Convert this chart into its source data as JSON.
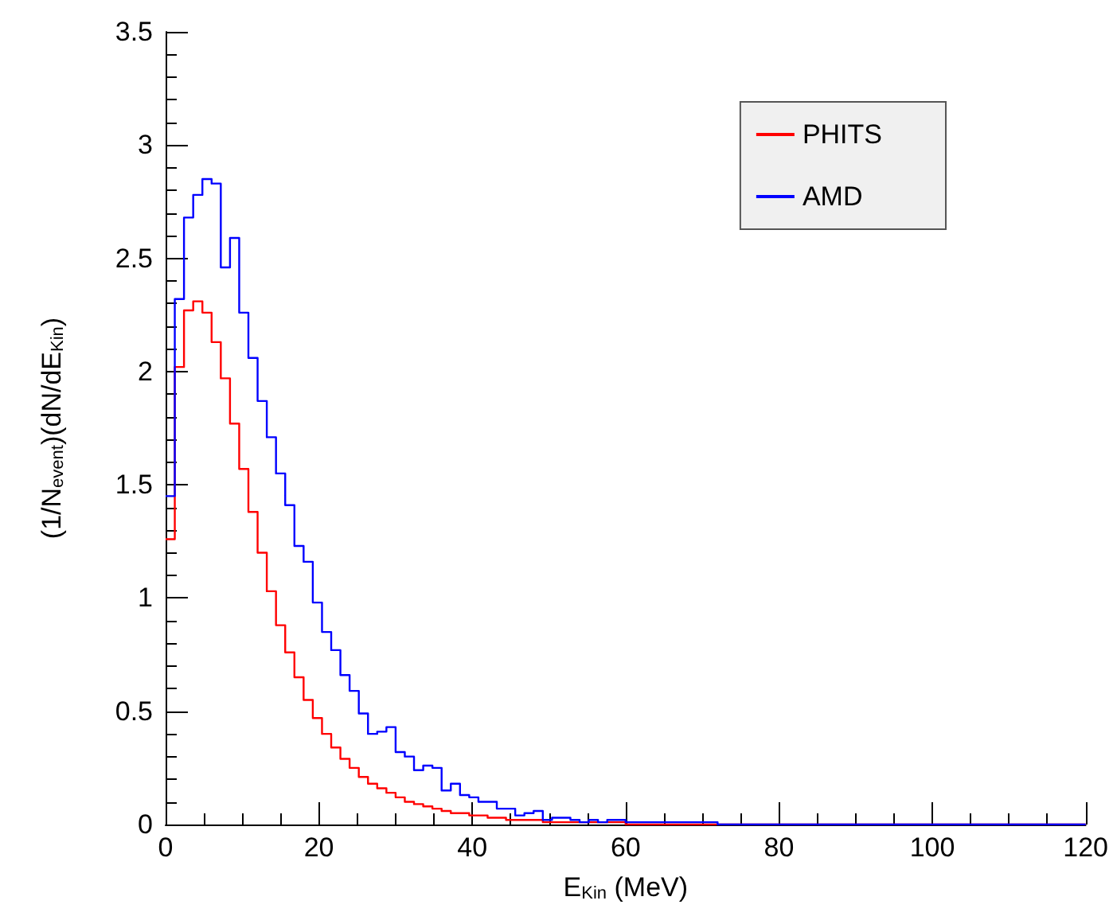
{
  "chart_data": {
    "type": "histogram",
    "xlabel": "E$_{Kin}$ (MeV)",
    "ylabel": "(1/N$_{event}$)(dN/dE$_{Kin}$)",
    "bins": [
      0,
      1.2,
      2.4,
      3.6,
      4.8,
      6,
      7.2,
      8.4,
      9.6,
      10.8,
      12,
      13.2,
      14.4,
      15.6,
      16.8,
      18,
      19.2,
      20.4,
      21.6,
      22.8,
      24,
      25.2,
      26.4,
      27.6,
      28.8,
      30,
      31.2,
      32.4,
      33.6,
      34.8,
      36,
      37.2,
      38.4,
      39.6,
      40.8,
      42,
      43.2,
      44.4,
      45.6,
      46.8,
      48,
      49.2,
      50.4,
      51.6,
      52.8,
      54,
      55.2,
      56.4,
      57.6,
      58.8,
      60,
      61.2,
      62.4,
      63.6,
      64.8,
      66,
      67.2,
      68.4,
      69.6,
      70.8,
      72,
      73.2,
      74.4,
      75.6,
      76.8,
      78,
      79.2,
      80.4,
      81.6,
      82.8,
      84,
      85.2,
      86.4,
      87.6,
      88.8,
      90,
      91.2,
      92.4,
      93.6,
      94.8,
      96,
      97.2,
      98.4,
      99.6,
      100.8,
      102,
      103.2,
      104.4,
      105.6,
      106.8,
      108,
      109.2,
      110.4,
      111.6,
      112.8,
      114,
      115.2,
      116.4,
      117.6,
      118.8,
      120
    ],
    "series": [
      {
        "name": "PHITS",
        "color": "#ff0000",
        "values": [
          1.26,
          2.02,
          2.27,
          2.31,
          2.26,
          2.13,
          1.97,
          1.77,
          1.57,
          1.38,
          1.2,
          1.03,
          0.88,
          0.76,
          0.65,
          0.55,
          0.47,
          0.4,
          0.34,
          0.29,
          0.25,
          0.21,
          0.18,
          0.16,
          0.14,
          0.12,
          0.1,
          0.09,
          0.08,
          0.07,
          0.06,
          0.05,
          0.05,
          0.04,
          0.04,
          0.03,
          0.03,
          0.02,
          0.02,
          0.02,
          0.02,
          0.01,
          0.01,
          0.01,
          0.01,
          0.01,
          0.01,
          0.01,
          0.01,
          0.01,
          0,
          0,
          0,
          0,
          0,
          0,
          0,
          0,
          0,
          0,
          0,
          0,
          0,
          0,
          0,
          0,
          0,
          0,
          0,
          0,
          0,
          0,
          0,
          0,
          0,
          0,
          0,
          0,
          0,
          0,
          0,
          0,
          0,
          0,
          0,
          0,
          0,
          0,
          0,
          0,
          0,
          0,
          0,
          0,
          0,
          0,
          0,
          0,
          0,
          0
        ]
      },
      {
        "name": "AMD",
        "color": "#0000ff",
        "values": [
          1.45,
          2.32,
          2.68,
          2.78,
          2.85,
          2.83,
          2.46,
          2.59,
          2.26,
          2.06,
          1.87,
          1.71,
          1.55,
          1.41,
          1.23,
          1.16,
          0.98,
          0.85,
          0.77,
          0.66,
          0.59,
          0.49,
          0.4,
          0.41,
          0.43,
          0.32,
          0.3,
          0.24,
          0.26,
          0.25,
          0.15,
          0.18,
          0.13,
          0.12,
          0.1,
          0.1,
          0.07,
          0.07,
          0.04,
          0.05,
          0.06,
          0.02,
          0.03,
          0.03,
          0.02,
          0.01,
          0.02,
          0.01,
          0.02,
          0.02,
          0.01,
          0.01,
          0.01,
          0.01,
          0.01,
          0.01,
          0.01,
          0.01,
          0.01,
          0.01,
          0,
          0,
          0,
          0,
          0,
          0,
          0,
          0,
          0,
          0,
          0,
          0,
          0,
          0,
          0,
          0,
          0,
          0,
          0,
          0,
          0,
          0,
          0,
          0,
          0,
          0,
          0,
          0,
          0,
          0,
          0,
          0,
          0,
          0,
          0,
          0,
          0,
          0,
          0,
          0
        ]
      }
    ],
    "xlim": [
      0,
      120
    ],
    "xticks": [
      0,
      20,
      40,
      60,
      80,
      100,
      120
    ],
    "ylim": [
      0,
      3.5
    ],
    "yticks": [
      0,
      0.5,
      1,
      1.5,
      2,
      2.5,
      3,
      3.5
    ],
    "grid": false,
    "legend": "top right"
  }
}
